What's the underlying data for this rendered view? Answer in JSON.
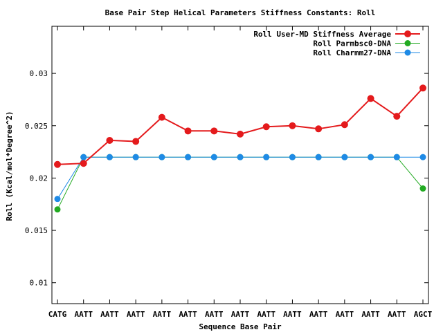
{
  "chart_data": {
    "type": "line",
    "title": "Base Pair Step Helical Parameters Stiffness Constants: Roll",
    "xlabel": "Sequence Base Pair",
    "ylabel": "Roll (Kcal/mol*Degree^2)",
    "categories": [
      "CATG",
      "AATT",
      "AATT",
      "AATT",
      "AATT",
      "AATT",
      "AATT",
      "AATT",
      "AATT",
      "AATT",
      "AATT",
      "AATT",
      "AATT",
      "AATT",
      "AGCT"
    ],
    "ylim": [
      0.008,
      0.0345
    ],
    "yticks": [
      0.01,
      0.015,
      0.02,
      0.025,
      0.03
    ],
    "ytick_labels": [
      "0.01",
      "0.015",
      "0.02",
      "0.025",
      "0.03"
    ],
    "grid": false,
    "legend_position": "top-right",
    "series": [
      {
        "name": "Roll User-MD Stiffness Average",
        "color": "#e41a1c",
        "values": [
          0.0213,
          0.0214,
          0.0236,
          0.0235,
          0.0258,
          0.0245,
          0.0245,
          0.0242,
          0.0249,
          0.025,
          0.0247,
          0.0251,
          0.0276,
          0.0259,
          0.0286
        ]
      },
      {
        "name": "Roll Parmbsc0-DNA",
        "color": "#22aa22",
        "values": [
          0.017,
          0.022,
          0.022,
          0.022,
          0.022,
          0.022,
          0.022,
          0.022,
          0.022,
          0.022,
          0.022,
          0.022,
          0.022,
          0.022,
          0.019
        ]
      },
      {
        "name": "Roll Charmm27-DNA",
        "color": "#1e8ae6",
        "values": [
          0.018,
          0.022,
          0.022,
          0.022,
          0.022,
          0.022,
          0.022,
          0.022,
          0.022,
          0.022,
          0.022,
          0.022,
          0.022,
          0.022,
          0.022
        ]
      }
    ]
  }
}
